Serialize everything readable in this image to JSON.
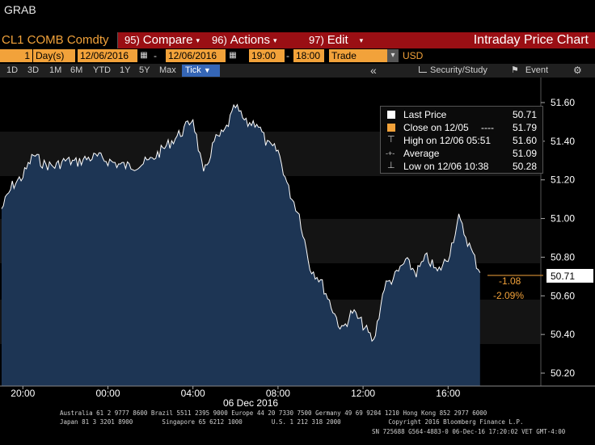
{
  "window": {
    "title": "GRAB"
  },
  "toolbar": {
    "ticker": "CL1 COMB Comdty",
    "compare": {
      "num": "95)",
      "label": "Compare"
    },
    "actions": {
      "num": "96)",
      "label": "Actions"
    },
    "edit": {
      "num": "97)",
      "label": "Edit"
    },
    "chart_title": "Intraday Price Chart"
  },
  "params": {
    "period_count": "1",
    "period_unit": "Day(s)",
    "start_date": "12/06/2016",
    "end_date": "12/06/2016",
    "start_time": "19:00",
    "end_time": "18:00",
    "field": "Trade",
    "currency": "USD",
    "dash": "-"
  },
  "periods": [
    "1D",
    "3D",
    "1M",
    "6M",
    "YTD",
    "1Y",
    "5Y",
    "Max"
  ],
  "tick_button": "Tick",
  "toolbar_right": {
    "arrow": "«",
    "study": "Security/Study",
    "event": "Event"
  },
  "legend": {
    "last_price": {
      "label": "Last Price",
      "value": "50.71"
    },
    "close": {
      "label": "Close on 12/05",
      "dashes": "----",
      "value": "51.79"
    },
    "high": {
      "label": "High on 12/06 05:51",
      "value": "51.60"
    },
    "average": {
      "label": "Average",
      "value": "51.09"
    },
    "low": {
      "label": "Low on 12/06 10:38",
      "value": "50.28"
    }
  },
  "last_tag": "50.71",
  "change": {
    "abs": "-1.08",
    "pct": "-2.09%"
  },
  "colors": {
    "accent": "#f2a23a",
    "menubar": "#9a0f14",
    "area": "#1d3554",
    "tick_button": "#3566b6"
  },
  "chart_data": {
    "type": "area",
    "x_labels": [
      "20:00",
      "00:00",
      "04:00",
      "08:00",
      "12:00",
      "16:00"
    ],
    "x_date_label": "06 Dec 2016",
    "y_ticks": [
      51.6,
      51.4,
      51.2,
      51.0,
      50.8,
      50.6,
      50.4,
      50.2
    ],
    "ylim": [
      50.15,
      51.72
    ],
    "grid": false,
    "legend_position": "top-right",
    "series": [
      {
        "name": "Last Price",
        "x_hours": [
          0,
          0.5,
          1,
          1.5,
          2,
          2.5,
          3,
          3.5,
          4,
          4.5,
          5,
          5.5,
          6,
          6.5,
          7,
          7.5,
          8,
          8.5,
          9,
          9.5,
          10,
          10.5,
          11,
          11.5,
          12,
          12.5,
          13,
          13.5,
          14,
          14.5,
          15,
          15.5,
          16,
          16.5,
          17,
          17.5,
          18,
          18.5,
          19,
          19.5,
          20,
          20.5,
          21,
          21.5,
          22,
          22.5
        ],
        "values": [
          51.05,
          51.17,
          51.22,
          51.33,
          51.28,
          51.27,
          51.3,
          51.29,
          51.31,
          51.32,
          51.3,
          51.28,
          51.27,
          51.28,
          51.3,
          51.35,
          51.4,
          51.45,
          51.52,
          51.22,
          51.4,
          51.45,
          51.58,
          51.49,
          51.5,
          51.38,
          51.35,
          51.15,
          51.02,
          50.75,
          50.68,
          50.55,
          50.42,
          50.52,
          50.45,
          50.36,
          50.65,
          50.7,
          50.78,
          50.72,
          50.8,
          50.72,
          50.8,
          51.0,
          50.86,
          50.72
        ]
      }
    ]
  },
  "footer": {
    "line1": "Australia 61 2 9777 8600 Brazil 5511 2395 9000 Europe 44 20 7330 7500 Germany 49 69 9204 1210 Hong Kong 852 2977 6000",
    "line2": "Japan 81 3 3201 8900        Singapore 65 6212 1000        U.S. 1 212 318 2000             Copyright 2016 Bloomberg Finance L.P.",
    "line3": "SN 725688 G564-4883-0 06-Dec-16 17:20:02 VET  GMT-4:00"
  }
}
